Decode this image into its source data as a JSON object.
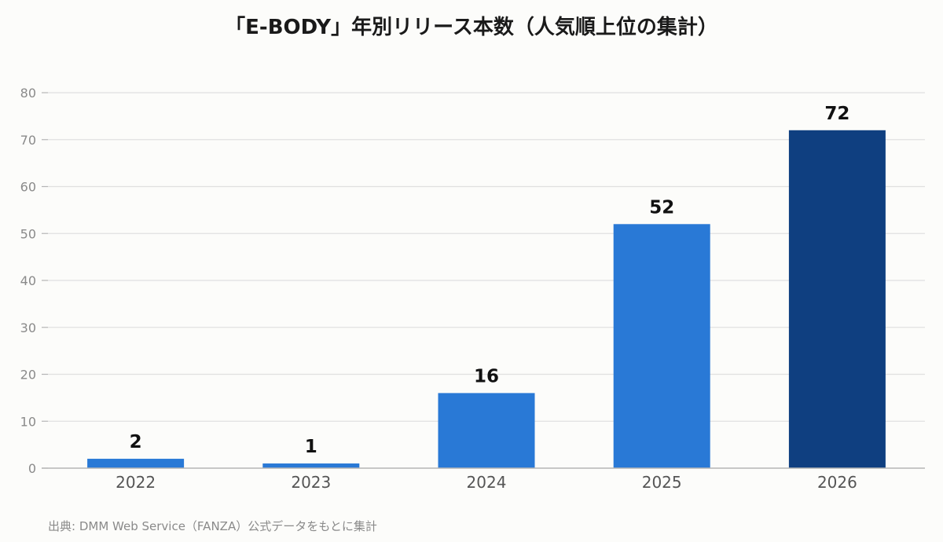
{
  "chart_data": {
    "type": "bar",
    "title": "「E-BODY」年別リリース本数（人気順上位の集計）",
    "xlabel": "",
    "ylabel": "",
    "categories": [
      "2022",
      "2023",
      "2024",
      "2025",
      "2026"
    ],
    "values": [
      2,
      1,
      16,
      52,
      72
    ],
    "data_labels": [
      "2",
      "1",
      "16",
      "52",
      "72"
    ],
    "ylim": [
      0,
      80
    ],
    "yticks": [
      0,
      10,
      20,
      30,
      40,
      50,
      60,
      70,
      80
    ],
    "grid": true,
    "legend": "none",
    "bar_colors": [
      "#2979d6",
      "#2979d6",
      "#2979d6",
      "#2979d6",
      "#0f3f80"
    ]
  },
  "source_note": "出典: DMM Web Service（FANZA）公式データをもとに集計",
  "colors": {
    "background": "#fcfcfa",
    "bar": "#2979d6",
    "bar_highlight": "#0f3f80",
    "grid": "#e0e0e0",
    "axis": "#b5b5b5"
  }
}
